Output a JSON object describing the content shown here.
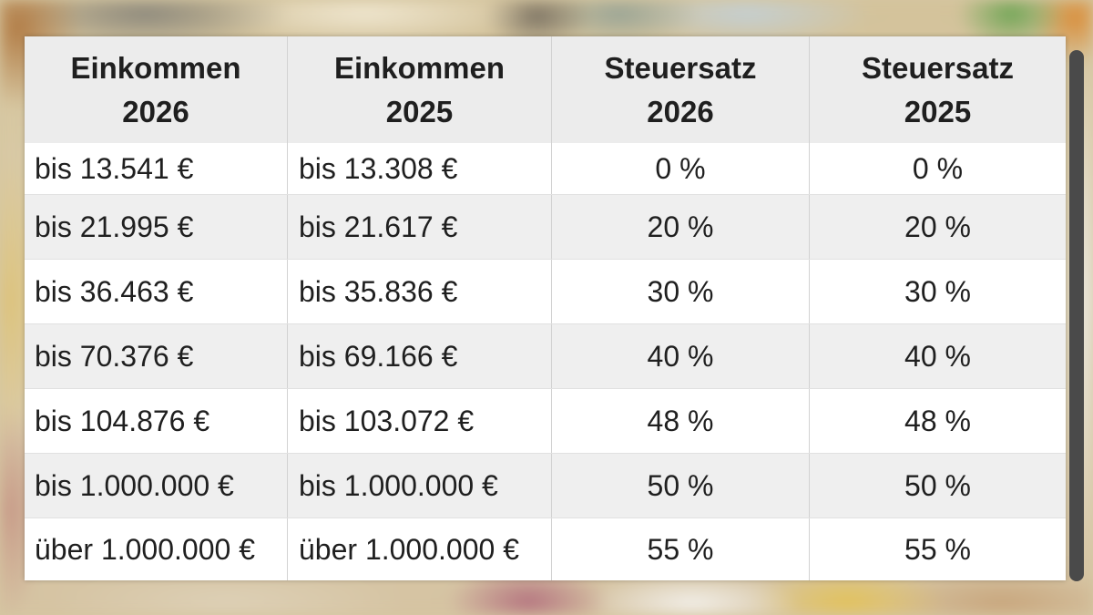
{
  "colors": {
    "header_bg": "#ececec",
    "row_bg": "#ffffff",
    "row_alt_bg": "#efefef",
    "text": "#1f1f1f",
    "scrollbar": "#4a4a4a"
  },
  "table": {
    "headers": [
      {
        "line1": "Einkommen",
        "line2": "2026"
      },
      {
        "line1": "Einkommen",
        "line2": "2025"
      },
      {
        "line1": "Steuersatz",
        "line2": "2026"
      },
      {
        "line1": "Steuersatz",
        "line2": "2025"
      }
    ],
    "rows": [
      [
        "bis 13.541 €",
        "bis 13.308 €",
        "0 %",
        "0 %"
      ],
      [
        "bis 21.995 €",
        "bis 21.617 €",
        "20 %",
        "20 %"
      ],
      [
        "bis 36.463 €",
        "bis 35.836 €",
        "30 %",
        "30 %"
      ],
      [
        "bis 70.376 €",
        "bis 69.166 €",
        "40 %",
        "40 %"
      ],
      [
        "bis 104.876 €",
        "bis 103.072 €",
        "48 %",
        "48 %"
      ],
      [
        "bis 1.000.000 €",
        "bis 1.000.000 €",
        "50 %",
        "50 %"
      ],
      [
        "über 1.000.000 €",
        "über 1.000.000 €",
        "55 %",
        "55 %"
      ]
    ]
  }
}
